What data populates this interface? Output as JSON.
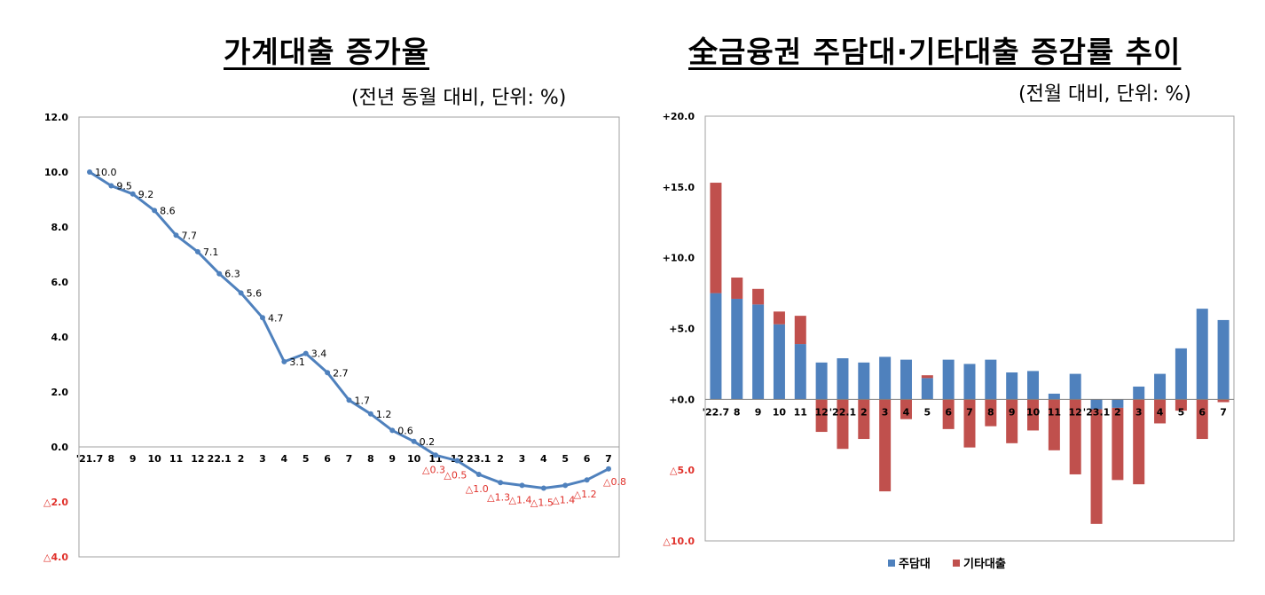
{
  "chart_data": [
    {
      "type": "line",
      "title": "가계대출 증가율",
      "unit_note": "(전년 동월 대비, 단위: %)",
      "ylim": [
        -4.0,
        12.0
      ],
      "yticks": [
        12.0,
        10.0,
        8.0,
        6.0,
        4.0,
        2.0,
        0.0,
        -2.0,
        -4.0
      ],
      "ytick_labels": [
        "12.0",
        "10.0",
        "8.0",
        "6.0",
        "4.0",
        "2.0",
        "0.0",
        "△2.0",
        "△4.0"
      ],
      "categories": [
        "'21.7",
        "8",
        "9",
        "10",
        "11",
        "12",
        "22.1",
        "2",
        "3",
        "4",
        "5",
        "6",
        "7",
        "8",
        "9",
        "10",
        "11",
        "12",
        "23.1",
        "2",
        "3",
        "4",
        "5",
        "6",
        "7"
      ],
      "values": [
        10.0,
        9.5,
        9.2,
        8.6,
        7.7,
        7.1,
        6.3,
        5.6,
        4.7,
        3.1,
        3.4,
        2.7,
        1.7,
        1.2,
        0.6,
        0.2,
        -0.3,
        -0.5,
        -1.0,
        -1.3,
        -1.4,
        -1.5,
        -1.4,
        -1.2,
        -0.8
      ],
      "data_labels": [
        "10.0",
        "9.5",
        "9.2",
        "8.6",
        "7.7",
        "7.1",
        "6.3",
        "5.6",
        "4.7",
        "3.1",
        "3.4",
        "2.7",
        "1.7",
        "1.2",
        "0.6",
        "0.2",
        "△0.3",
        "△0.5",
        "△1.0",
        "△1.3",
        "△1.4",
        "△1.5",
        "△1.4",
        "△1.2",
        "△0.8"
      ],
      "grid": false,
      "colors": {
        "line": "#4f81bd",
        "negative_label": "#e0302a"
      }
    },
    {
      "type": "bar",
      "stacked": true,
      "title": "全금융권 주담대·기타대출 증감률 추이",
      "unit_note": "(전월 대비, 단위: %)",
      "ylim": [
        -10.0,
        20.0
      ],
      "yticks": [
        20.0,
        15.0,
        10.0,
        5.0,
        0.0,
        -5.0,
        -10.0
      ],
      "ytick_labels": [
        "+20.0",
        "+15.0",
        "+10.0",
        "+5.0",
        "+0.0",
        "△5.0",
        "△10.0"
      ],
      "categories": [
        "'22.7",
        "8",
        "9",
        "10",
        "11",
        "12",
        "'22.1",
        "2",
        "3",
        "4",
        "5",
        "6",
        "7",
        "8",
        "9",
        "10",
        "11",
        "12",
        "'23.1",
        "2",
        "3",
        "4",
        "5",
        "6",
        "7"
      ],
      "series": [
        {
          "name": "주담대",
          "color": "#4f81bd",
          "values": [
            7.5,
            7.1,
            6.7,
            5.3,
            3.9,
            2.6,
            2.9,
            2.6,
            3.0,
            2.8,
            1.5,
            2.8,
            2.5,
            2.8,
            1.9,
            2.0,
            0.4,
            1.8,
            -0.7,
            -0.6,
            0.9,
            1.8,
            3.6,
            6.4,
            5.6
          ]
        },
        {
          "name": "기타대출",
          "color": "#c0504d",
          "values": [
            7.8,
            1.5,
            1.1,
            0.9,
            2.0,
            -2.3,
            -3.5,
            -2.8,
            -6.5,
            -1.4,
            0.2,
            -2.1,
            -3.4,
            -1.9,
            -3.1,
            -2.2,
            -3.6,
            -5.3,
            -8.1,
            -5.1,
            -6.0,
            -1.7,
            -0.8,
            -2.8,
            -0.2
          ]
        }
      ],
      "legend": "bottom",
      "grid": false
    }
  ]
}
